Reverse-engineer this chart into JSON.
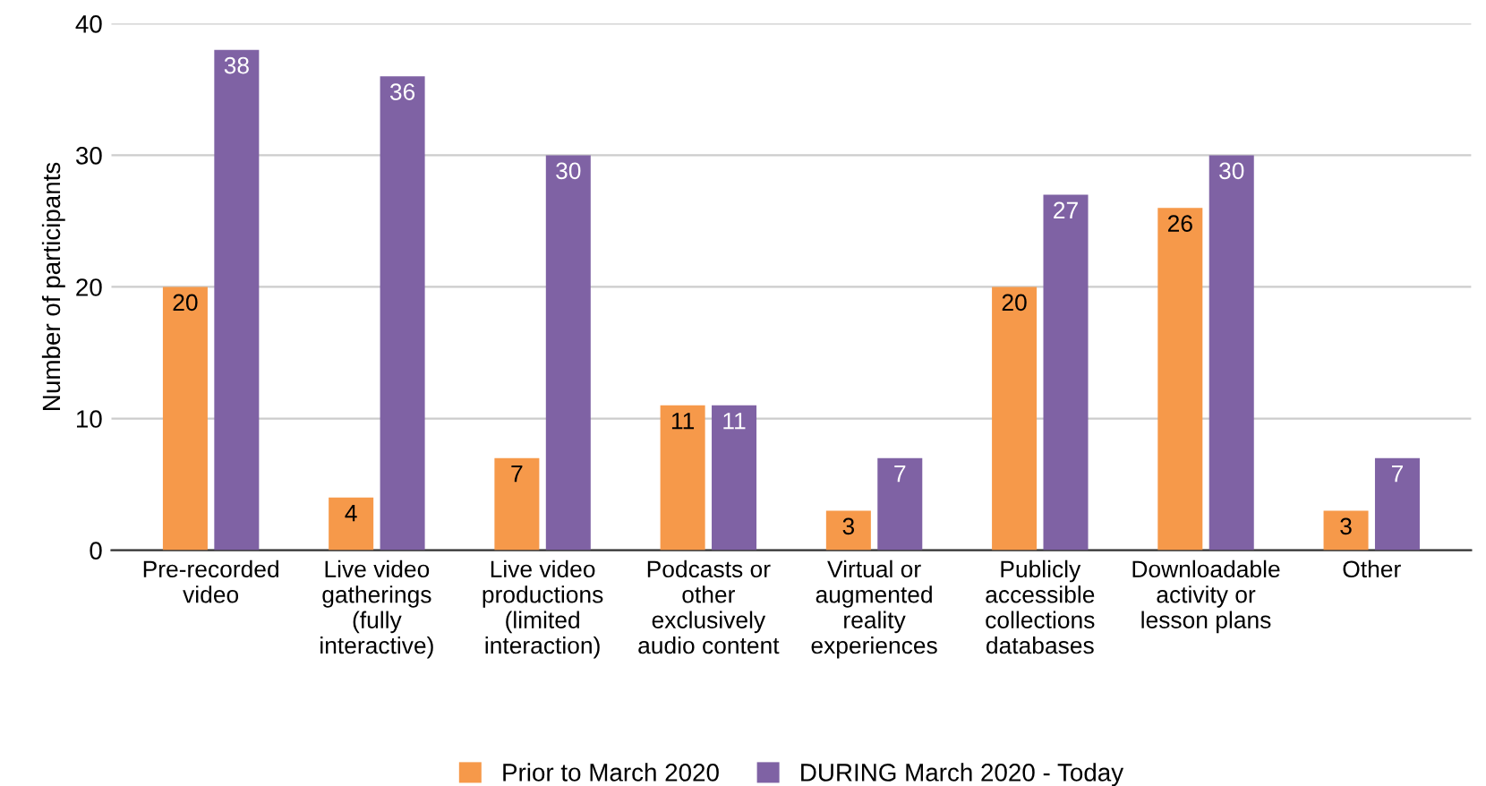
{
  "chart_data": {
    "type": "bar",
    "ylabel": "Number of participants",
    "categories": [
      "Pre-recorded\nvideo",
      "Live video\ngatherings\n(fully\ninteractive)",
      "Live video\nproductions\n(limited\ninteraction)",
      "Podcasts or\nother\nexclusively\naudio content",
      "Virtual or\naugmented\nreality\nexperiences",
      "Publicly\naccessible\ncollections\ndatabases",
      "Downloadable\nactivity or\nlesson plans",
      "Other"
    ],
    "series": [
      {
        "name": "Prior to March 2020",
        "color": "#f6994a",
        "values": [
          20,
          4,
          7,
          11,
          3,
          20,
          26,
          3
        ]
      },
      {
        "name": "DURING March 2020 - Today",
        "color": "#7f62a4",
        "values": [
          38,
          36,
          30,
          11,
          7,
          27,
          30,
          7
        ]
      }
    ],
    "ylim": [
      0,
      40
    ],
    "yticks": [
      0,
      10,
      20,
      30,
      40
    ],
    "grid": "y",
    "legend": "bottom",
    "data_labels": true
  }
}
